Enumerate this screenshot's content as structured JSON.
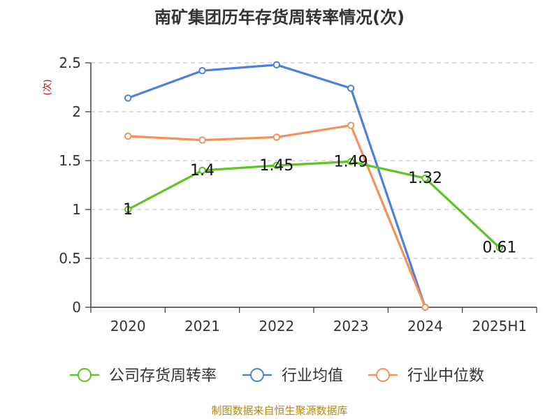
{
  "chart_data": {
    "type": "line",
    "title": "南矿集团历年存货周转率情况(次)",
    "ylabel": "(次)",
    "xlabel": "",
    "categories": [
      "2020",
      "2021",
      "2022",
      "2023",
      "2024",
      "2025H1"
    ],
    "ylim": [
      0,
      2.5
    ],
    "yticks": [
      "0",
      "0.5",
      "1",
      "1.5",
      "2",
      "2.5"
    ],
    "grid": true,
    "legend_position": "bottom",
    "series": [
      {
        "name": "公司存货周转率",
        "color": "#5cc424",
        "values": [
          1,
          1.4,
          1.45,
          1.49,
          1.32,
          0.61
        ],
        "labels": [
          "1",
          "1.4",
          "1.45",
          "1.49",
          "1.32",
          "0.61"
        ]
      },
      {
        "name": "行业均值",
        "color": "#4f7fde",
        "values": [
          2.14,
          2.42,
          2.48,
          2.24,
          0,
          null
        ]
      },
      {
        "name": "行业中位数",
        "color": "#f5905a",
        "values": [
          1.75,
          1.71,
          1.74,
          1.86,
          0,
          null
        ]
      }
    ]
  },
  "footer": {
    "source": "制图数据来自恒生聚源数据库"
  }
}
